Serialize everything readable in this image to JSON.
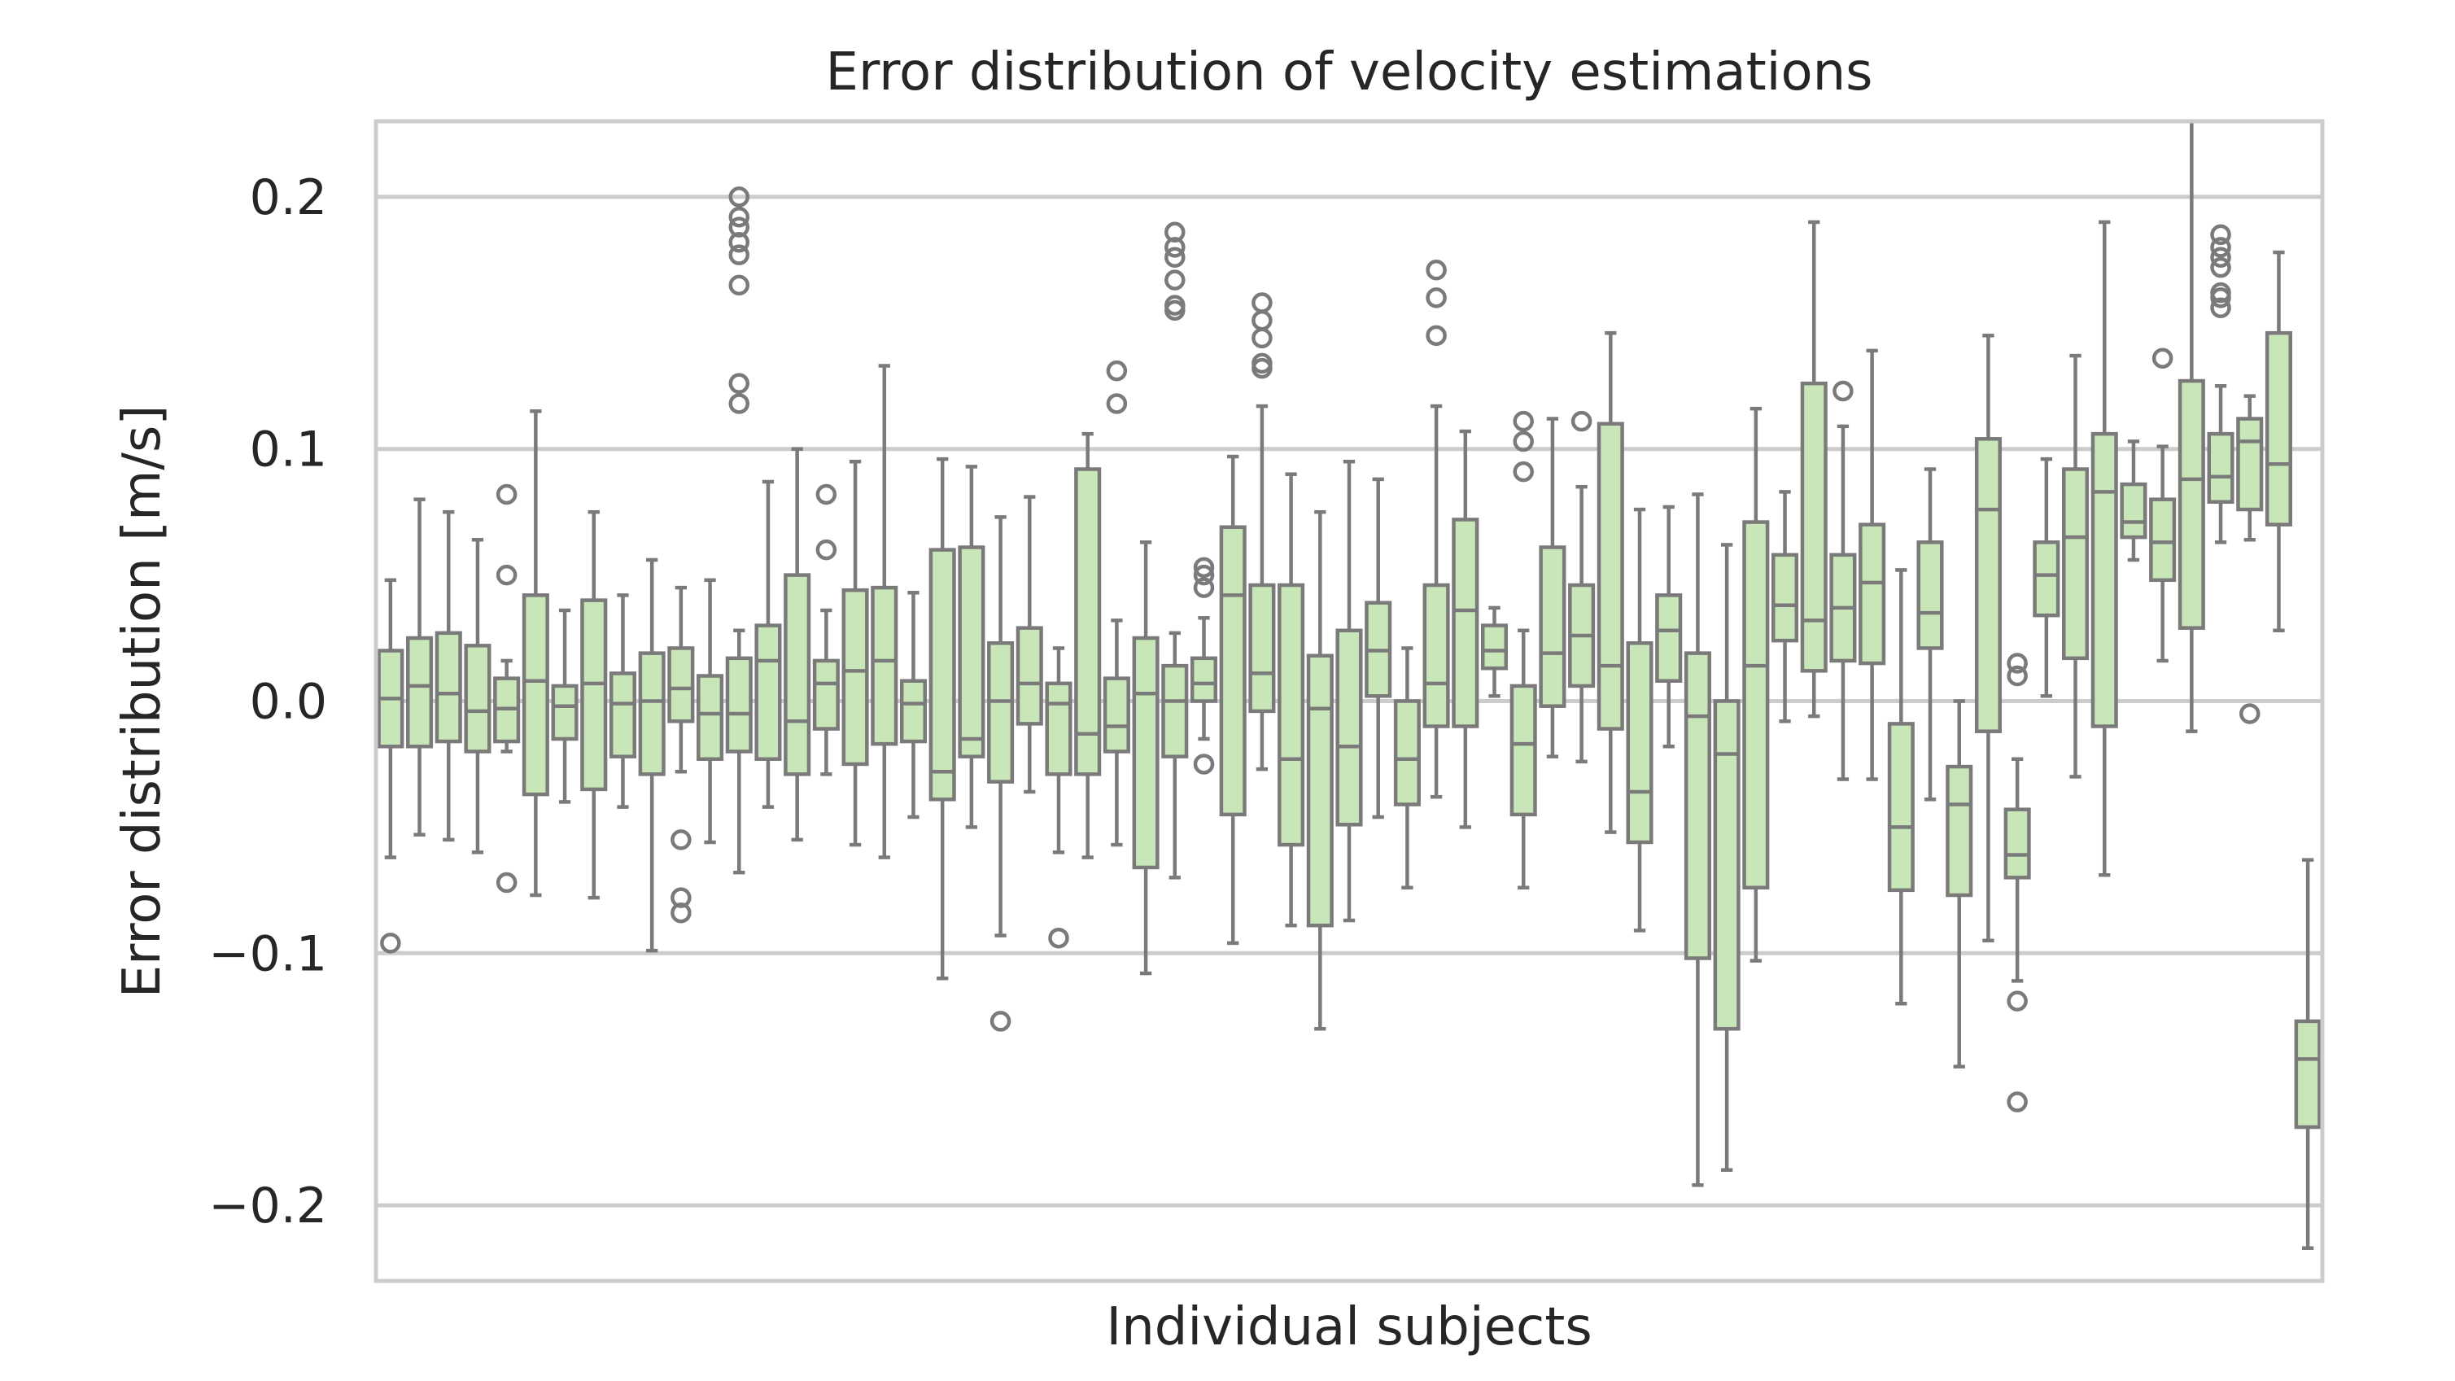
{
  "chart_data": {
    "type": "box",
    "title": "Error distribution of velocity estimations",
    "xlabel": "Individual subjects",
    "ylabel": "Error distribution [m/s]",
    "ylim": [
      -0.23,
      0.23
    ],
    "yticks": [
      0.2,
      0.1,
      0.0,
      -0.1,
      -0.2
    ],
    "ytick_labels": [
      "0.2",
      "0.1",
      "0.0",
      "−0.1",
      "−0.2"
    ],
    "grid": "horizontal",
    "box_color": "#c8e6b8",
    "line_color": "#7a7a7a",
    "grid_color": "#cccccc",
    "subjects": [
      {
        "q1": -0.018,
        "median": 0.001,
        "q3": 0.02,
        "whisker_low": -0.062,
        "whisker_high": 0.048,
        "outliers": [
          -0.096
        ]
      },
      {
        "q1": -0.018,
        "median": 0.006,
        "q3": 0.025,
        "whisker_low": -0.053,
        "whisker_high": 0.08,
        "outliers": []
      },
      {
        "q1": -0.016,
        "median": 0.003,
        "q3": 0.027,
        "whisker_low": -0.055,
        "whisker_high": 0.075,
        "outliers": []
      },
      {
        "q1": -0.02,
        "median": -0.004,
        "q3": 0.022,
        "whisker_low": -0.06,
        "whisker_high": 0.064,
        "outliers": []
      },
      {
        "q1": -0.016,
        "median": -0.003,
        "q3": 0.009,
        "whisker_low": -0.02,
        "whisker_high": 0.016,
        "outliers": [
          0.082,
          0.05,
          -0.072
        ]
      },
      {
        "q1": -0.037,
        "median": 0.008,
        "q3": 0.042,
        "whisker_low": -0.077,
        "whisker_high": 0.115,
        "outliers": []
      },
      {
        "q1": -0.015,
        "median": -0.002,
        "q3": 0.006,
        "whisker_low": -0.04,
        "whisker_high": 0.036,
        "outliers": []
      },
      {
        "q1": -0.035,
        "median": 0.007,
        "q3": 0.04,
        "whisker_low": -0.078,
        "whisker_high": 0.075,
        "outliers": []
      },
      {
        "q1": -0.022,
        "median": -0.001,
        "q3": 0.011,
        "whisker_low": -0.042,
        "whisker_high": 0.042,
        "outliers": []
      },
      {
        "q1": -0.029,
        "median": 0.0,
        "q3": 0.019,
        "whisker_low": -0.099,
        "whisker_high": 0.056,
        "outliers": []
      },
      {
        "q1": -0.008,
        "median": 0.005,
        "q3": 0.021,
        "whisker_low": -0.028,
        "whisker_high": 0.045,
        "outliers": [
          -0.055,
          -0.078,
          -0.084
        ]
      },
      {
        "q1": -0.023,
        "median": -0.005,
        "q3": 0.01,
        "whisker_low": -0.056,
        "whisker_high": 0.048,
        "outliers": []
      },
      {
        "q1": -0.02,
        "median": -0.005,
        "q3": 0.017,
        "whisker_low": -0.068,
        "whisker_high": 0.028,
        "outliers": [
          0.2,
          0.192,
          0.188,
          0.182,
          0.177,
          0.165,
          0.126,
          0.118
        ]
      },
      {
        "q1": -0.023,
        "median": 0.016,
        "q3": 0.03,
        "whisker_low": -0.042,
        "whisker_high": 0.087,
        "outliers": []
      },
      {
        "q1": -0.029,
        "median": -0.008,
        "q3": 0.05,
        "whisker_low": -0.055,
        "whisker_high": 0.1,
        "outliers": []
      },
      {
        "q1": -0.011,
        "median": 0.007,
        "q3": 0.016,
        "whisker_low": -0.029,
        "whisker_high": 0.036,
        "outliers": [
          0.082,
          0.06
        ]
      },
      {
        "q1": -0.025,
        "median": 0.012,
        "q3": 0.044,
        "whisker_low": -0.057,
        "whisker_high": 0.095,
        "outliers": []
      },
      {
        "q1": -0.017,
        "median": 0.016,
        "q3": 0.045,
        "whisker_low": -0.062,
        "whisker_high": 0.133,
        "outliers": []
      },
      {
        "q1": -0.016,
        "median": -0.001,
        "q3": 0.008,
        "whisker_low": -0.046,
        "whisker_high": 0.043,
        "outliers": []
      },
      {
        "q1": -0.039,
        "median": -0.028,
        "q3": 0.06,
        "whisker_low": -0.11,
        "whisker_high": 0.096,
        "outliers": []
      },
      {
        "q1": -0.022,
        "median": -0.015,
        "q3": 0.061,
        "whisker_low": -0.05,
        "whisker_high": 0.093,
        "outliers": []
      },
      {
        "q1": -0.032,
        "median": 0.0,
        "q3": 0.023,
        "whisker_low": -0.093,
        "whisker_high": 0.073,
        "outliers": [
          -0.127
        ]
      },
      {
        "q1": -0.009,
        "median": 0.007,
        "q3": 0.029,
        "whisker_low": -0.036,
        "whisker_high": 0.081,
        "outliers": []
      },
      {
        "q1": -0.029,
        "median": -0.001,
        "q3": 0.007,
        "whisker_low": -0.06,
        "whisker_high": 0.021,
        "outliers": [
          -0.094
        ]
      },
      {
        "q1": -0.029,
        "median": -0.013,
        "q3": 0.092,
        "whisker_low": -0.062,
        "whisker_high": 0.106,
        "outliers": []
      },
      {
        "q1": -0.02,
        "median": -0.01,
        "q3": 0.009,
        "whisker_low": -0.057,
        "whisker_high": 0.032,
        "outliers": [
          0.131,
          0.118
        ]
      },
      {
        "q1": -0.066,
        "median": 0.003,
        "q3": 0.025,
        "whisker_low": -0.108,
        "whisker_high": 0.063,
        "outliers": []
      },
      {
        "q1": -0.022,
        "median": 0.0,
        "q3": 0.014,
        "whisker_low": -0.07,
        "whisker_high": 0.027,
        "outliers": [
          0.186,
          0.18,
          0.176,
          0.167,
          0.157,
          0.155
        ]
      },
      {
        "q1": 0.0,
        "median": 0.007,
        "q3": 0.017,
        "whisker_low": -0.015,
        "whisker_high": 0.033,
        "outliers": [
          0.053,
          0.05,
          0.045,
          -0.025
        ]
      },
      {
        "q1": -0.045,
        "median": 0.042,
        "q3": 0.069,
        "whisker_low": -0.096,
        "whisker_high": 0.097,
        "outliers": []
      },
      {
        "q1": -0.004,
        "median": 0.011,
        "q3": 0.046,
        "whisker_low": -0.027,
        "whisker_high": 0.117,
        "outliers": [
          0.158,
          0.151,
          0.144,
          0.134,
          0.132
        ]
      },
      {
        "q1": -0.057,
        "median": -0.023,
        "q3": 0.046,
        "whisker_low": -0.089,
        "whisker_high": 0.09,
        "outliers": []
      },
      {
        "q1": -0.089,
        "median": -0.003,
        "q3": 0.018,
        "whisker_low": -0.13,
        "whisker_high": 0.075,
        "outliers": []
      },
      {
        "q1": -0.049,
        "median": -0.018,
        "q3": 0.028,
        "whisker_low": -0.087,
        "whisker_high": 0.095,
        "outliers": []
      },
      {
        "q1": 0.002,
        "median": 0.02,
        "q3": 0.039,
        "whisker_low": -0.046,
        "whisker_high": 0.088,
        "outliers": []
      },
      {
        "q1": -0.041,
        "median": -0.023,
        "q3": 0.0,
        "whisker_low": -0.074,
        "whisker_high": 0.021,
        "outliers": []
      },
      {
        "q1": -0.01,
        "median": 0.007,
        "q3": 0.046,
        "whisker_low": -0.038,
        "whisker_high": 0.117,
        "outliers": [
          0.171,
          0.16,
          0.145
        ]
      },
      {
        "q1": -0.01,
        "median": 0.036,
        "q3": 0.072,
        "whisker_low": -0.05,
        "whisker_high": 0.107,
        "outliers": []
      },
      {
        "q1": 0.013,
        "median": 0.02,
        "q3": 0.03,
        "whisker_low": 0.002,
        "whisker_high": 0.037,
        "outliers": []
      },
      {
        "q1": -0.045,
        "median": -0.017,
        "q3": 0.006,
        "whisker_low": -0.074,
        "whisker_high": 0.028,
        "outliers": [
          0.111,
          0.103,
          0.091
        ]
      },
      {
        "q1": -0.002,
        "median": 0.019,
        "q3": 0.061,
        "whisker_low": -0.022,
        "whisker_high": 0.112,
        "outliers": []
      },
      {
        "q1": 0.006,
        "median": 0.026,
        "q3": 0.046,
        "whisker_low": -0.024,
        "whisker_high": 0.085,
        "outliers": [
          0.111
        ]
      },
      {
        "q1": -0.011,
        "median": 0.014,
        "q3": 0.11,
        "whisker_low": -0.052,
        "whisker_high": 0.146,
        "outliers": []
      },
      {
        "q1": -0.056,
        "median": -0.036,
        "q3": 0.023,
        "whisker_low": -0.091,
        "whisker_high": 0.076,
        "outliers": []
      },
      {
        "q1": 0.008,
        "median": 0.028,
        "q3": 0.042,
        "whisker_low": -0.018,
        "whisker_high": 0.077,
        "outliers": []
      },
      {
        "q1": -0.102,
        "median": -0.006,
        "q3": 0.019,
        "whisker_low": -0.192,
        "whisker_high": 0.082,
        "outliers": []
      },
      {
        "q1": -0.13,
        "median": -0.021,
        "q3": 0.0,
        "whisker_low": -0.186,
        "whisker_high": 0.062,
        "outliers": []
      },
      {
        "q1": -0.074,
        "median": 0.014,
        "q3": 0.071,
        "whisker_low": -0.103,
        "whisker_high": 0.116,
        "outliers": []
      },
      {
        "q1": 0.024,
        "median": 0.038,
        "q3": 0.058,
        "whisker_low": -0.008,
        "whisker_high": 0.083,
        "outliers": []
      },
      {
        "q1": 0.012,
        "median": 0.032,
        "q3": 0.126,
        "whisker_low": -0.006,
        "whisker_high": 0.19,
        "outliers": []
      },
      {
        "q1": 0.016,
        "median": 0.037,
        "q3": 0.058,
        "whisker_low": -0.031,
        "whisker_high": 0.109,
        "outliers": [
          0.123
        ]
      },
      {
        "q1": 0.015,
        "median": 0.047,
        "q3": 0.07,
        "whisker_low": -0.031,
        "whisker_high": 0.139,
        "outliers": []
      },
      {
        "q1": -0.075,
        "median": -0.05,
        "q3": -0.009,
        "whisker_low": -0.12,
        "whisker_high": 0.052,
        "outliers": []
      },
      {
        "q1": 0.021,
        "median": 0.035,
        "q3": 0.063,
        "whisker_low": -0.039,
        "whisker_high": 0.092,
        "outliers": []
      },
      {
        "q1": -0.077,
        "median": -0.041,
        "q3": -0.026,
        "whisker_low": -0.145,
        "whisker_high": 0.0,
        "outliers": []
      },
      {
        "q1": -0.012,
        "median": 0.076,
        "q3": 0.104,
        "whisker_low": -0.095,
        "whisker_high": 0.145,
        "outliers": []
      },
      {
        "q1": -0.07,
        "median": -0.061,
        "q3": -0.043,
        "whisker_low": -0.111,
        "whisker_high": -0.023,
        "outliers": [
          0.015,
          0.01,
          -0.119,
          -0.159
        ]
      },
      {
        "q1": 0.034,
        "median": 0.05,
        "q3": 0.063,
        "whisker_low": 0.002,
        "whisker_high": 0.096,
        "outliers": []
      },
      {
        "q1": 0.017,
        "median": 0.065,
        "q3": 0.092,
        "whisker_low": -0.03,
        "whisker_high": 0.137,
        "outliers": []
      },
      {
        "q1": -0.01,
        "median": 0.083,
        "q3": 0.106,
        "whisker_low": -0.069,
        "whisker_high": 0.19,
        "outliers": []
      },
      {
        "q1": 0.065,
        "median": 0.071,
        "q3": 0.086,
        "whisker_low": 0.056,
        "whisker_high": 0.103,
        "outliers": []
      },
      {
        "q1": 0.048,
        "median": 0.063,
        "q3": 0.08,
        "whisker_low": 0.016,
        "whisker_high": 0.101,
        "outliers": [
          0.136
        ]
      },
      {
        "q1": 0.029,
        "median": 0.088,
        "q3": 0.127,
        "whisker_low": -0.012,
        "whisker_high": 0.23,
        "outliers": []
      },
      {
        "q1": 0.079,
        "median": 0.089,
        "q3": 0.106,
        "whisker_low": 0.063,
        "whisker_high": 0.125,
        "outliers": [
          0.185,
          0.18,
          0.176,
          0.172,
          0.162,
          0.16,
          0.156
        ]
      },
      {
        "q1": 0.076,
        "median": 0.103,
        "q3": 0.112,
        "whisker_low": 0.064,
        "whisker_high": 0.121,
        "outliers": [
          -0.005
        ]
      },
      {
        "q1": 0.07,
        "median": 0.094,
        "q3": 0.146,
        "whisker_low": 0.028,
        "whisker_high": 0.178,
        "outliers": []
      },
      {
        "q1": -0.169,
        "median": -0.142,
        "q3": -0.127,
        "whisker_low": -0.217,
        "whisker_high": -0.063,
        "outliers": []
      }
    ]
  }
}
